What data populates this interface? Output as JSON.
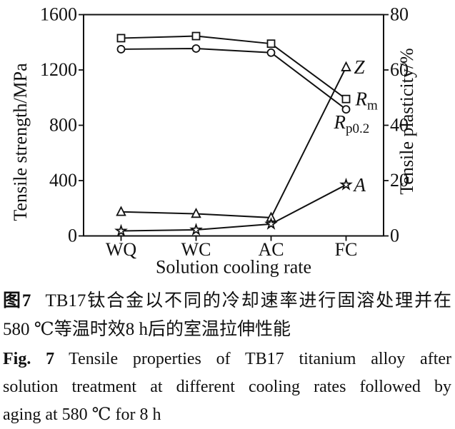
{
  "figure": {
    "caption_cn": {
      "label": "图7",
      "line1": "TB17钛合金以不同的冷却速率进行固溶处理并在",
      "line2": "580 ℃等温时效8 h后的室温拉伸性能"
    },
    "caption_en": {
      "label": "Fig. 7",
      "line1": "Tensile properties of TB17 titanium alloy after",
      "line2": "solution treatment at different cooling rates followed by",
      "line3": "aging at 580 ℃ for 8 h"
    }
  },
  "chart_data": {
    "type": "line",
    "title": "",
    "categories": [
      "WQ",
      "WC",
      "AC",
      "FC"
    ],
    "xlabel": "Solution cooling rate",
    "grid": false,
    "legend_position": "inline-right-of-last-point",
    "background": "#ffffff",
    "line_color": "#111111",
    "axes": {
      "left": {
        "label": "Tensile strength/MPa",
        "min": 0,
        "max": 1600,
        "ticks": [
          0,
          400,
          800,
          1200,
          1600
        ]
      },
      "right": {
        "label": "Tensile plasticity/%",
        "min": 0,
        "max": 80,
        "ticks": [
          0,
          20,
          40,
          60,
          80
        ]
      }
    },
    "series": [
      {
        "name": "Rm",
        "label": "R",
        "sub": "m",
        "axis": "left",
        "marker": "square",
        "values": [
          1430,
          1445,
          1390,
          990
        ],
        "label_dx": 13,
        "label_dy": 9
      },
      {
        "name": "Rp02",
        "label": "R",
        "sub": "p0.2",
        "axis": "left",
        "marker": "circle",
        "values": [
          1350,
          1355,
          1325,
          915
        ],
        "label_dx": -17,
        "label_dy": 27
      },
      {
        "name": "Z",
        "label": "Z",
        "sub": "",
        "axis": "right",
        "marker": "triangle",
        "values": [
          8.7,
          8.0,
          6.6,
          61
        ],
        "label_dx": 11,
        "label_dy": 9
      },
      {
        "name": "A",
        "label": "A",
        "sub": "",
        "axis": "right",
        "marker": "star",
        "values": [
          1.8,
          2.2,
          4.3,
          18.5
        ],
        "label_dx": 11,
        "label_dy": 9
      }
    ]
  }
}
